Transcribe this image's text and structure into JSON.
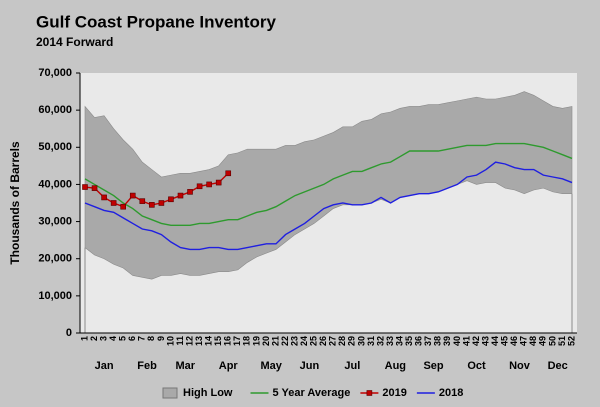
{
  "chart_data": {
    "type": "line",
    "title": "Gulf Coast Propane Inventory",
    "subtitle": "2014 Forward",
    "y_label": "Thousands of Barrels",
    "categories": [
      1,
      2,
      3,
      4,
      5,
      6,
      7,
      8,
      9,
      10,
      11,
      12,
      13,
      14,
      15,
      16,
      17,
      18,
      19,
      20,
      21,
      22,
      23,
      24,
      25,
      26,
      27,
      28,
      29,
      30,
      31,
      32,
      33,
      34,
      35,
      36,
      37,
      38,
      39,
      40,
      41,
      42,
      43,
      44,
      45,
      46,
      47,
      48,
      49,
      50,
      51,
      52
    ],
    "month_groups": [
      {
        "label": "Jan",
        "first_week": 1,
        "last_week": 5
      },
      {
        "label": "Feb",
        "first_week": 6,
        "last_week": 9
      },
      {
        "label": "Mar",
        "first_week": 10,
        "last_week": 13
      },
      {
        "label": "Apr",
        "first_week": 14,
        "last_week": 18
      },
      {
        "label": "May",
        "first_week": 19,
        "last_week": 22
      },
      {
        "label": "Jun",
        "first_week": 23,
        "last_week": 26
      },
      {
        "label": "Jul",
        "first_week": 27,
        "last_week": 31
      },
      {
        "label": "Aug",
        "first_week": 32,
        "last_week": 35
      },
      {
        "label": "Sep",
        "first_week": 36,
        "last_week": 39
      },
      {
        "label": "Oct",
        "first_week": 40,
        "last_week": 44
      },
      {
        "label": "Nov",
        "first_week": 45,
        "last_week": 48
      },
      {
        "label": "Dec",
        "first_week": 49,
        "last_week": 52
      }
    ],
    "ylim": [
      0,
      70000
    ],
    "yticks": [
      0,
      {
        "value": 10000,
        "label": "10,000"
      },
      {
        "value": 20000,
        "label": "20,000"
      },
      {
        "value": 30000,
        "label": "30,000"
      },
      {
        "value": 40000,
        "label": "40,000"
      },
      {
        "value": 50000,
        "label": "50,000"
      },
      {
        "value": 60000,
        "label": "60,000"
      },
      {
        "value": 70000,
        "label": "70,000"
      }
    ],
    "grid": false,
    "legend": "bottom",
    "band": {
      "name": "High Low",
      "color": "#a9a9a9",
      "high": [
        61000,
        58000,
        58500,
        55000,
        52000,
        49500,
        46000,
        44000,
        42000,
        42500,
        43000,
        43000,
        43500,
        44000,
        45000,
        48000,
        48500,
        49500,
        49500,
        49500,
        49500,
        50500,
        50500,
        51500,
        52000,
        53000,
        54000,
        55500,
        55500,
        57000,
        57500,
        59000,
        59500,
        60500,
        61000,
        61000,
        61500,
        61500,
        62000,
        62500,
        63000,
        63500,
        63000,
        63000,
        63500,
        64000,
        65000,
        64000,
        62500,
        61000,
        60500,
        61000
      ],
      "low": [
        23000,
        21000,
        20000,
        18500,
        17500,
        15500,
        15000,
        14500,
        15500,
        15500,
        16000,
        15500,
        15500,
        16000,
        16500,
        16500,
        17000,
        19000,
        20500,
        21500,
        22500,
        24500,
        26500,
        28000,
        29500,
        31500,
        33500,
        34500,
        34500,
        34500,
        35000,
        36000,
        35000,
        36500,
        37000,
        37500,
        37500,
        38000,
        39000,
        40000,
        41000,
        40000,
        40500,
        40500,
        39000,
        38500,
        37500,
        38500,
        39000,
        38000,
        37500,
        37500
      ]
    },
    "series": [
      {
        "name": "5 Year Average",
        "color": "#2e9a2e",
        "marker": false,
        "values": [
          41500,
          40000,
          38500,
          37000,
          35000,
          33500,
          31500,
          30500,
          29500,
          29000,
          29000,
          29000,
          29500,
          29500,
          30000,
          30500,
          30500,
          31500,
          32500,
          33000,
          34000,
          35500,
          37000,
          38000,
          39000,
          40000,
          41500,
          42500,
          43500,
          43500,
          44500,
          45500,
          46000,
          47500,
          49000,
          49000,
          49000,
          49000,
          49500,
          50000,
          50500,
          50500,
          50500,
          51000,
          51000,
          51000,
          51000,
          50500,
          50000,
          49000,
          48000,
          47000
        ]
      },
      {
        "name": "2019",
        "color": "#c00000",
        "marker": true,
        "values": [
          39300,
          39000,
          36500,
          35000,
          34000,
          37000,
          35500,
          34500,
          35000,
          36000,
          37000,
          38000,
          39500,
          40000,
          40500,
          43000,
          null,
          null,
          null,
          null,
          null,
          null,
          null,
          null,
          null,
          null,
          null,
          null,
          null,
          null,
          null,
          null,
          null,
          null,
          null,
          null,
          null,
          null,
          null,
          null,
          null,
          null,
          null,
          null,
          null,
          null,
          null,
          null,
          null,
          null,
          null,
          null
        ]
      },
      {
        "name": "2018",
        "color": "#1f1fe0",
        "marker": false,
        "values": [
          35000,
          34000,
          33000,
          32500,
          31000,
          29500,
          28000,
          27500,
          26500,
          24500,
          23000,
          22500,
          22500,
          23000,
          23000,
          22500,
          22500,
          23000,
          23500,
          24000,
          24000,
          26500,
          28000,
          29500,
          31500,
          33500,
          34500,
          35000,
          34500,
          34500,
          35000,
          36500,
          35000,
          36500,
          37000,
          37500,
          37500,
          38000,
          39000,
          40000,
          42000,
          42500,
          44000,
          46000,
          45500,
          44500,
          44000,
          44000,
          42500,
          42000,
          41500,
          40500
        ]
      }
    ]
  }
}
